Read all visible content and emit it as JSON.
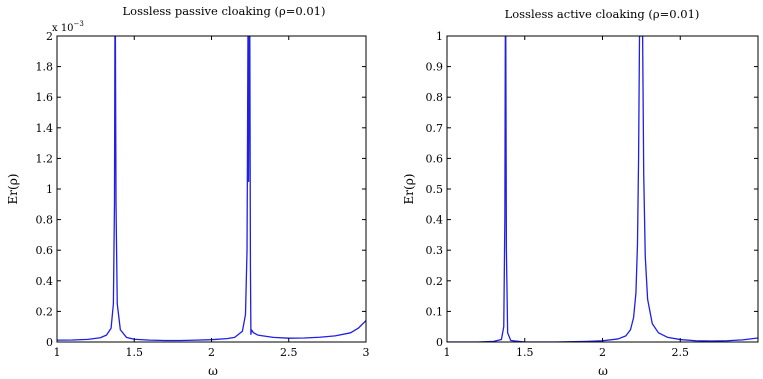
{
  "chart_data": [
    {
      "type": "line",
      "title": "Lossless passive cloaking (ρ=0.01)",
      "xlabel": "ω",
      "ylabel": "Er(ρ)",
      "xlim": [
        1,
        3
      ],
      "ylim": [
        0,
        0.002
      ],
      "y_exponent_label": "x 10",
      "y_exponent_power": "−3",
      "xticks": [
        1,
        1.5,
        2,
        2.5,
        3
      ],
      "xtick_labels": [
        "1",
        "1.5",
        "2",
        "2.5",
        "3"
      ],
      "yticks": [
        0,
        0.0002,
        0.0004,
        0.0006,
        0.0008,
        0.001,
        0.0012,
        0.0014,
        0.0016,
        0.0018,
        0.002
      ],
      "ytick_labels": [
        "0",
        "0.2",
        "0.4",
        "0.6",
        "0.8",
        "1",
        "1.2",
        "1.4",
        "1.6",
        "1.8",
        "2"
      ],
      "grid": false,
      "line_color": "#1f1fe6",
      "series": [
        {
          "x": [
            1.0,
            1.1,
            1.2,
            1.28,
            1.32,
            1.35,
            1.365,
            1.372,
            1.375,
            1.378,
            1.382,
            1.39,
            1.41,
            1.45,
            1.5,
            1.6,
            1.7,
            1.8,
            1.9,
            2.0,
            2.1,
            2.15,
            2.2,
            2.22,
            2.23,
            2.236,
            2.24,
            2.244,
            2.248,
            2.252,
            2.255,
            2.258,
            2.262,
            2.27,
            2.3,
            2.4,
            2.5,
            2.6,
            2.7,
            2.8,
            2.9,
            2.95,
            3.0
          ],
          "y": [
            1.2e-05,
            1.3e-05,
            1.7e-05,
            2.8e-05,
            4.5e-05,
            9e-05,
            0.00025,
            0.0009,
            0.002,
            0.002,
            0.0009,
            0.00025,
            8e-05,
            3e-05,
            1.8e-05,
            1.2e-05,
            1e-05,
            1e-05,
            1.2e-05,
            1.5e-05,
            2.2e-05,
            3e-05,
            7e-05,
            0.00018,
            0.0006,
            0.002,
            0.00105,
            0.002,
            0.002,
            0.0005,
            5e-05,
            8e-05,
            7.5e-05,
            6.2e-05,
            4.5e-05,
            3e-05,
            2.5e-05,
            2.6e-05,
            3.1e-05,
            4e-05,
            6e-05,
            9e-05,
            0.00014
          ]
        }
      ]
    },
    {
      "type": "line",
      "title": "Lossless active cloaking (ρ=0.01)",
      "xlabel": "ω",
      "ylabel": "Er(ρ)",
      "xlim": [
        1,
        3
      ],
      "ylim": [
        0,
        1
      ],
      "xticks": [
        1,
        1.5,
        2,
        2.5
      ],
      "xtick_labels": [
        "1",
        "1.5",
        "2",
        "2.5"
      ],
      "yticks": [
        0,
        0.1,
        0.2,
        0.3,
        0.4,
        0.5,
        0.6,
        0.7,
        0.8,
        0.9,
        1
      ],
      "ytick_labels": [
        "0",
        "0.1",
        "0.2",
        "0.3",
        "0.4",
        "0.5",
        "0.6",
        "0.7",
        "0.8",
        "0.9",
        "1"
      ],
      "grid": false,
      "line_color": "#1f1fe6",
      "series": [
        {
          "x": [
            1.0,
            1.2,
            1.3,
            1.35,
            1.365,
            1.372,
            1.375,
            1.378,
            1.382,
            1.39,
            1.41,
            1.5,
            1.7,
            1.9,
            2.0,
            2.1,
            2.15,
            2.18,
            2.2,
            2.215,
            2.225,
            2.232,
            2.238,
            2.25,
            2.258,
            2.265,
            2.275,
            2.29,
            2.32,
            2.36,
            2.42,
            2.5,
            2.6,
            2.7,
            2.8,
            2.9,
            3.0
          ],
          "y": [
            0.0,
            0.0,
            0.002,
            0.008,
            0.05,
            0.4,
            1.0,
            1.0,
            0.3,
            0.03,
            0.005,
            0.0,
            0.0,
            0.002,
            0.004,
            0.01,
            0.02,
            0.04,
            0.08,
            0.16,
            0.32,
            0.6,
            1.0,
            1.0,
            1.0,
            0.55,
            0.28,
            0.14,
            0.06,
            0.03,
            0.015,
            0.008,
            0.004,
            0.003,
            0.004,
            0.007,
            0.013
          ]
        }
      ]
    }
  ]
}
